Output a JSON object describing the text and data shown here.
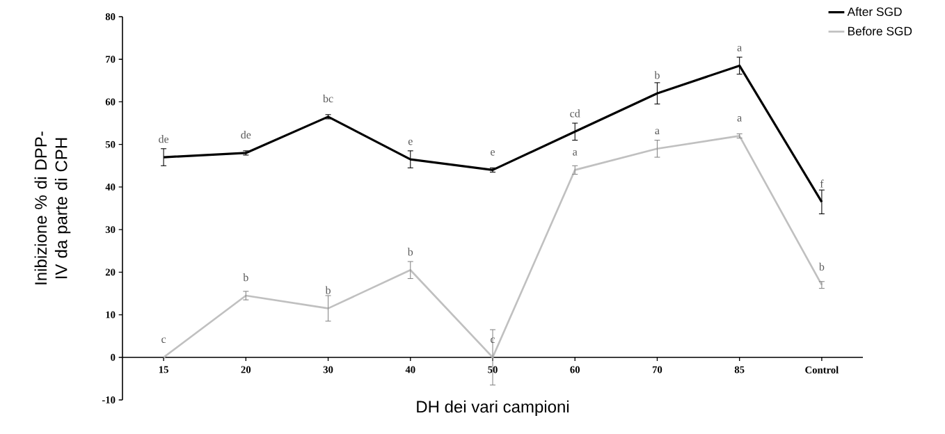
{
  "chart_data": {
    "type": "line",
    "xlabel": "DH dei vari campioni",
    "ylabel": "Inibizione % di DPP-IV da parte di CPH",
    "categories": [
      "15",
      "20",
      "30",
      "40",
      "50",
      "60",
      "70",
      "85",
      "Control"
    ],
    "series": [
      {
        "name": "After SGD",
        "color": "#000000",
        "values": [
          47,
          48,
          56.5,
          46.5,
          44,
          53,
          62,
          68.5,
          36.5
        ],
        "errors": [
          2,
          0.5,
          0.5,
          2,
          0.5,
          2,
          2.5,
          2,
          2.8
        ]
      },
      {
        "name": "Before SGD",
        "color": "#c0c0c0",
        "values": [
          0,
          14.5,
          11.5,
          20.5,
          0,
          44,
          49,
          52,
          17
        ],
        "errors": [
          null,
          1,
          3,
          2,
          6.5,
          1,
          2,
          0.5,
          0.8
        ]
      }
    ],
    "ylim": [
      -10,
      80
    ],
    "yticks": [
      -10,
      0,
      10,
      20,
      30,
      40,
      50,
      60,
      70,
      80
    ],
    "legend": "top right",
    "marker": "none",
    "line_style": "solid",
    "grid": false,
    "annotations": [
      {
        "text": "de",
        "x": "15",
        "y": 47
      },
      {
        "text": "de",
        "x": "20",
        "y": 48
      },
      {
        "text": "bc",
        "x": "30",
        "y": 56.5
      },
      {
        "text": "e",
        "x": "40",
        "y": 46.5
      },
      {
        "text": "e",
        "x": "50",
        "y": 44
      },
      {
        "text": "cd",
        "x": "60",
        "y": 53
      },
      {
        "text": "b",
        "x": "70",
        "y": 62
      },
      {
        "text": "a",
        "x": "85",
        "y": 68.5
      },
      {
        "text": "f",
        "x": "Control",
        "y": 36.5
      },
      {
        "text": "c",
        "x": "15",
        "y": 0
      },
      {
        "text": "b",
        "x": "20",
        "y": 14.5
      },
      {
        "text": "b",
        "x": "30",
        "y": 11.5
      },
      {
        "text": "b",
        "x": "40",
        "y": 20.5
      },
      {
        "text": "c",
        "x": "50",
        "y": 0
      },
      {
        "text": "a",
        "x": "60",
        "y": 44
      },
      {
        "text": "a",
        "x": "70",
        "y": 49
      },
      {
        "text": "a",
        "x": "85",
        "y": 52
      },
      {
        "text": "b",
        "x": "Control",
        "y": 17
      }
    ]
  }
}
